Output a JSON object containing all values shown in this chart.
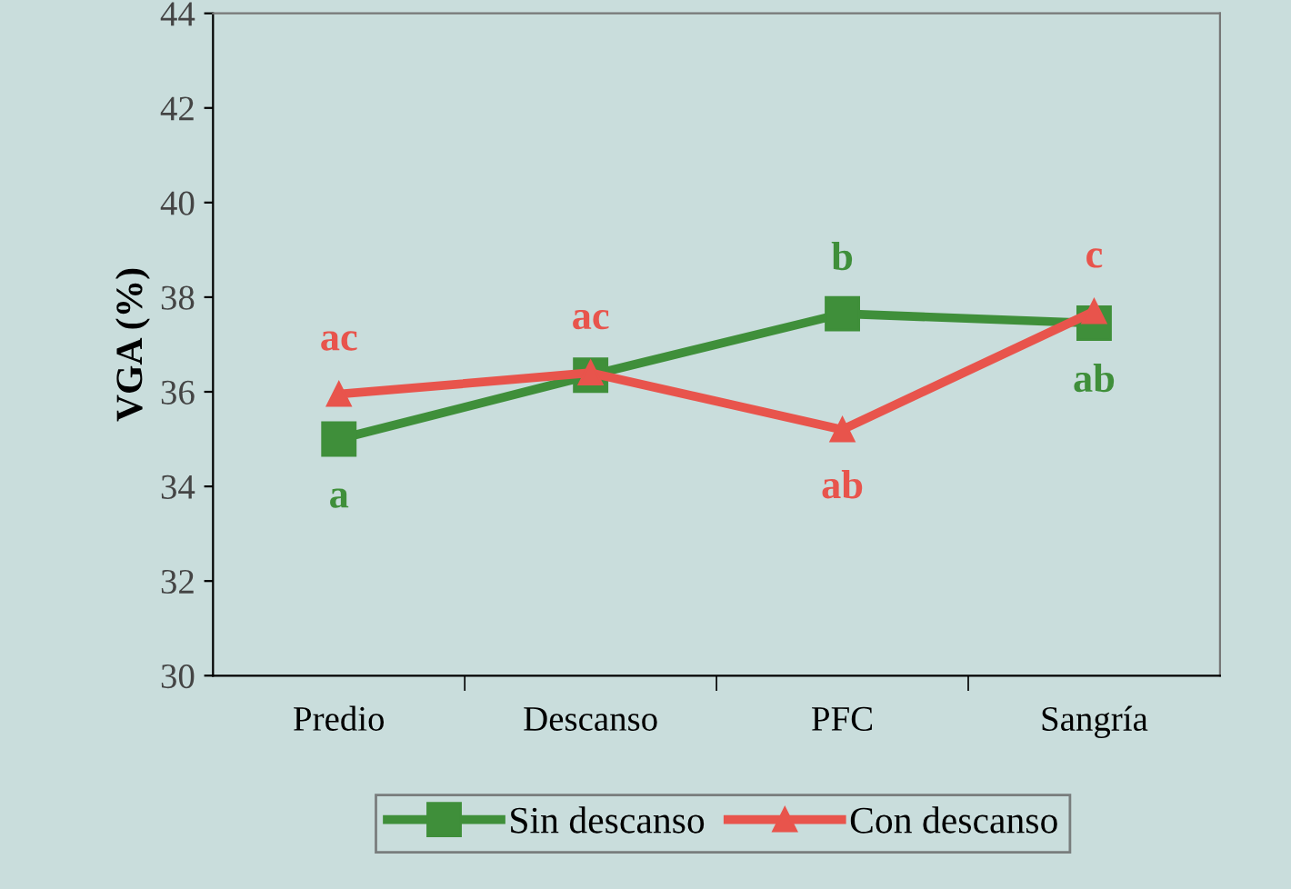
{
  "chart_data": {
    "type": "line",
    "ylabel": "VGA (%)",
    "categories": [
      "Predio",
      "Descanso",
      "PFC",
      "Sangría"
    ],
    "ylim": [
      30,
      44
    ],
    "yticks": [
      30,
      32,
      34,
      36,
      38,
      40,
      42,
      44
    ],
    "grid": false,
    "legend": "bottom",
    "series": [
      {
        "name": "Sin descanso",
        "color": "#3f8f3a",
        "marker": "square",
        "values": [
          35.0,
          36.35,
          37.65,
          37.45
        ],
        "value_labels": [
          "a",
          null,
          "b",
          "ab"
        ]
      },
      {
        "name": "Con descanso",
        "color": "#e8544c",
        "marker": "triangle",
        "values": [
          35.95,
          36.4,
          35.2,
          37.7
        ],
        "value_labels": [
          "ac",
          "ac",
          "ab",
          "c"
        ]
      }
    ]
  }
}
